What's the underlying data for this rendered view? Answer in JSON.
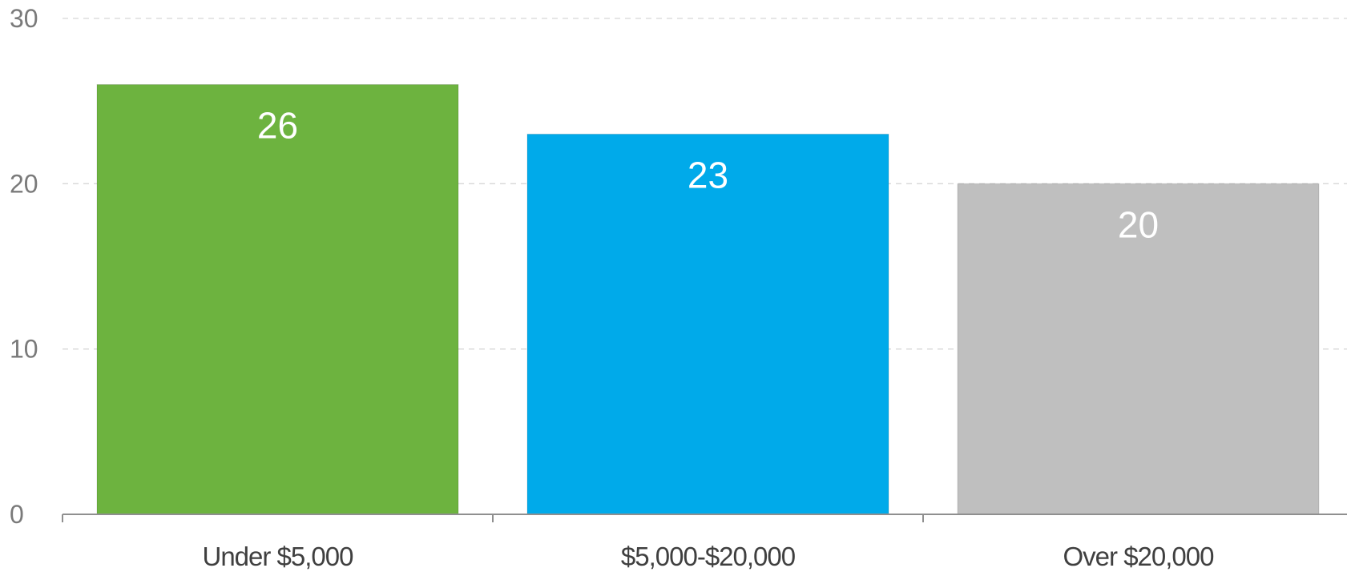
{
  "chart_data": {
    "type": "bar",
    "categories": [
      "Under $5,000",
      "$5,000-$20,000",
      "Over $20,000"
    ],
    "values": [
      26,
      23,
      20
    ],
    "data_labels": [
      "26",
      "23",
      "20"
    ],
    "colors": [
      "#6db33f",
      "#00aaea",
      "#bfbfbf"
    ],
    "title": "",
    "xlabel": "",
    "ylabel": "",
    "ylim": [
      0,
      30
    ],
    "yticks": [
      0,
      10,
      20,
      30
    ],
    "ytick_labels": [
      "0",
      "10",
      "20",
      "30"
    ],
    "grid": true,
    "grid_style": "dashed",
    "legend": "none"
  }
}
